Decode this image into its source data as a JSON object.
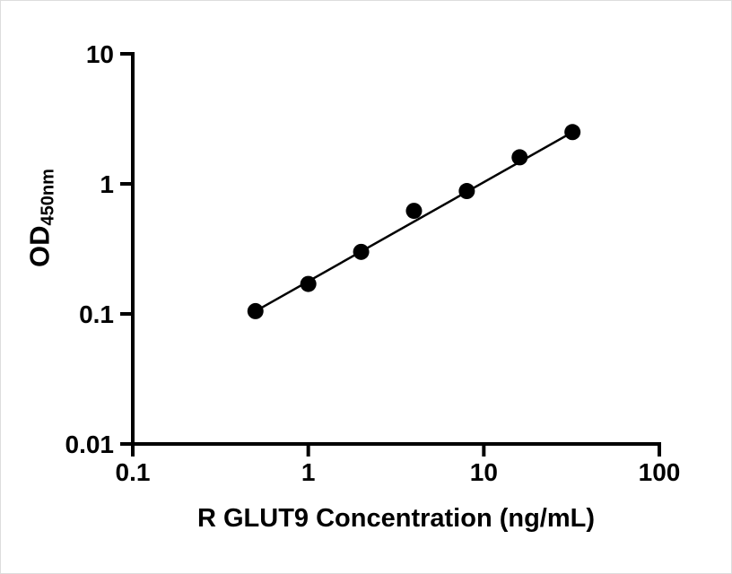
{
  "chart_data": {
    "type": "scatter",
    "title": "",
    "xlabel": "R GLUT9 Concentration (ng/mL)",
    "ylabel_main": "OD",
    "ylabel_sub": "450nm",
    "xscale": "log",
    "yscale": "log",
    "xlim": [
      0.1,
      100
    ],
    "ylim": [
      0.01,
      10
    ],
    "x_ticks": [
      0.1,
      1,
      10,
      100
    ],
    "x_tick_labels": [
      "0.1",
      "1",
      "10",
      "100"
    ],
    "y_ticks": [
      0.01,
      0.1,
      1,
      10
    ],
    "y_tick_labels": [
      "0.01",
      "0.1",
      "1",
      "10"
    ],
    "x": [
      0.5,
      1,
      2,
      4,
      8,
      16,
      32
    ],
    "y": [
      0.105,
      0.17,
      0.3,
      0.62,
      0.88,
      1.6,
      2.5
    ],
    "line": "straight-fit-log-log",
    "grid": false,
    "legend": null,
    "marker_color": "#000000",
    "line_color": "#000000",
    "axis_color": "#000000",
    "background_color": "#ffffff"
  }
}
